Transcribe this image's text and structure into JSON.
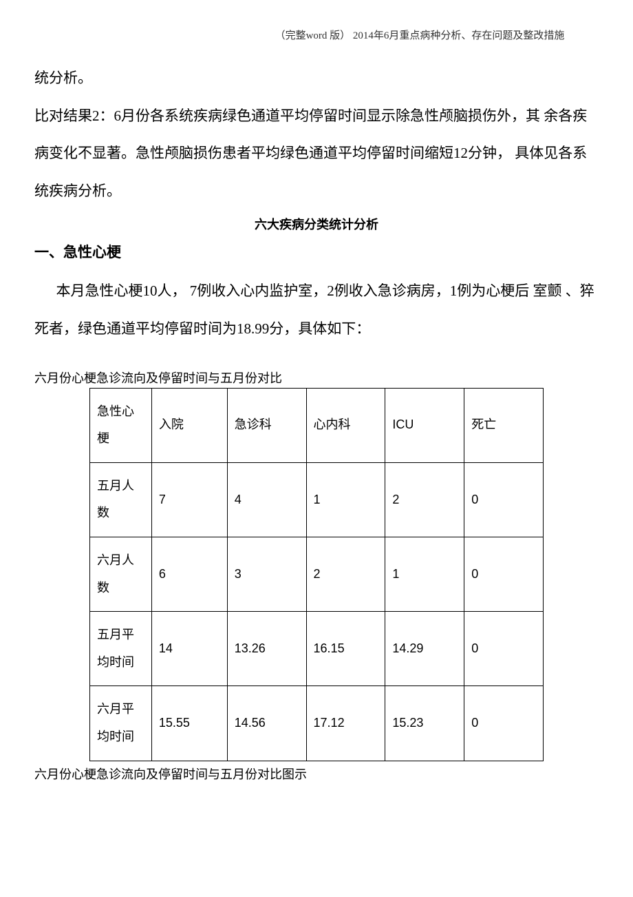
{
  "header": {
    "text": "（完整word 版） 2014年6月重点病种分析、存在问题及整改措施"
  },
  "paragraphs": {
    "p1": "统分析。",
    "p2": "比对结果2：6月份各系统疾病绿色通道平均停留时间显示除急性颅脑损伤外，其 余各疾病变化不显著。急性颅脑损伤患者平均绿色通道平均停留时间缩短12分钟， 具体见各系统疾病分析。"
  },
  "subtitle": "六大疾病分类统计分析",
  "section": {
    "heading": "一、急性心梗",
    "intro": "本月急性心梗10人， 7例收入心内监护室，2例收入急诊病房，1例为心梗后 室颤 、猝死者，绿色通道平均停留时间为18.99分，具体如下："
  },
  "table": {
    "caption": "六月份心梗急诊流向及停留时间与五月份对比",
    "columns": [
      "急性心梗",
      "入院",
      "急诊科",
      "心内科",
      "ICU",
      "死亡"
    ],
    "rows": [
      [
        "五月人数",
        "7",
        "4",
        "1",
        "2",
        "0"
      ],
      [
        "六月人数",
        "6",
        "3",
        "2",
        "1",
        "0"
      ],
      [
        "五月平均时间",
        "14",
        "13.26",
        "16.15",
        "14.29",
        "0"
      ],
      [
        "六月平均时间",
        "15.55",
        "14.56",
        "17.12",
        "15.23",
        "0"
      ]
    ],
    "footer": "六月份心梗急诊流向及停留时间与五月份对比图示",
    "border_color": "#000000",
    "cell_fontsize": 18,
    "caption_fontsize": 18
  },
  "styles": {
    "body_fontsize": 21,
    "header_fontsize": 15,
    "heading_fontsize": 21,
    "line_height": 2.6,
    "background_color": "#ffffff",
    "text_color": "#000000"
  }
}
